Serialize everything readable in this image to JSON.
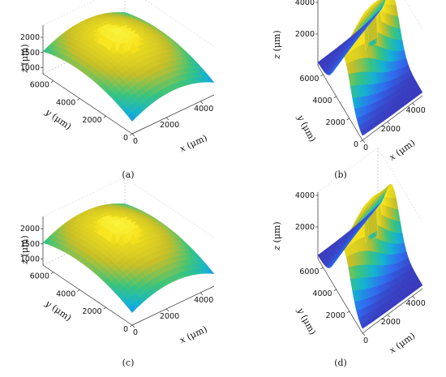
{
  "chart_data": [
    {
      "id": "a",
      "label": "(a)",
      "type": "surface3d",
      "shape": "dome",
      "x": {
        "label_var": "x",
        "label_unit": " (μm)",
        "ticks": [
          0,
          2000,
          4000
        ]
      },
      "y": {
        "label_var": "y",
        "label_unit": " (μm)",
        "ticks": [
          0,
          2000,
          4000,
          6000
        ]
      },
      "z": {
        "label_var": "z",
        "label_unit": " (μm)",
        "ticks": [
          1000,
          1500,
          2000
        ]
      },
      "xlim": [
        0,
        4800
      ],
      "ylim": [
        0,
        6800
      ],
      "zlim": [
        800,
        2400
      ]
    },
    {
      "id": "b",
      "label": "(b)",
      "type": "surface3d",
      "shape": "ridge",
      "x": {
        "label_var": "x",
        "label_unit": " (μm)",
        "ticks": [
          0,
          2000,
          4000
        ]
      },
      "y": {
        "label_var": "y",
        "label_unit": " (μm)",
        "ticks": [
          0,
          2000,
          4000,
          6000
        ]
      },
      "z": {
        "label_var": "z",
        "label_unit": " (μm)",
        "ticks": [
          2000,
          4000
        ]
      },
      "xlim": [
        0,
        4800
      ],
      "ylim": [
        0,
        6800
      ],
      "zlim": [
        0,
        4200
      ]
    },
    {
      "id": "c",
      "label": "(c)",
      "type": "surface3d",
      "shape": "dome",
      "x": {
        "label_var": "x",
        "label_unit": " (μm)",
        "ticks": [
          0,
          2000,
          4000
        ]
      },
      "y": {
        "label_var": "y",
        "label_unit": " (μm)",
        "ticks": [
          0,
          2000,
          4000,
          6000
        ]
      },
      "z": {
        "label_var": "z",
        "label_unit": " (μm)",
        "ticks": [
          1000,
          1500,
          2000
        ]
      },
      "xlim": [
        0,
        4800
      ],
      "ylim": [
        0,
        6800
      ],
      "zlim": [
        800,
        2400
      ]
    },
    {
      "id": "d",
      "label": "(d)",
      "type": "surface3d",
      "shape": "ridge",
      "x": {
        "label_var": "x",
        "label_unit": " (μm)",
        "ticks": [
          0,
          2000,
          4000
        ]
      },
      "y": {
        "label_var": "y",
        "label_unit": " (μm)",
        "ticks": [
          2000,
          4000,
          6000
        ]
      },
      "z": {
        "label_var": "z",
        "label_unit": " (μm)",
        "ticks": [
          2000,
          4000
        ]
      },
      "xlim": [
        0,
        4800
      ],
      "ylim": [
        0,
        6800
      ],
      "zlim": [
        0,
        4200
      ]
    }
  ],
  "colormap": [
    "#3e26a8",
    "#2f6cf0",
    "#12b2d4",
    "#3ac47d",
    "#c6be27",
    "#f6e21a",
    "#fbfd4a"
  ]
}
